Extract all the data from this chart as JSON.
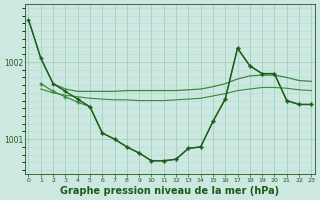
{
  "background_color": "#cce8e0",
  "plot_bg_color": "#cce8e0",
  "grid_color_major": "#99ccbb",
  "grid_color_minor": "#b8ddd4",
  "line_dark": "#1a5c1a",
  "line_light": "#3a8a3a",
  "xlabel": "Graphe pression niveau de la mer (hPa)",
  "xlabel_fontsize": 7,
  "ylabel_ticks": [
    1001,
    1002
  ],
  "xlim": [
    -0.3,
    23.3
  ],
  "ylim": [
    1000.55,
    1002.75
  ],
  "xticks": [
    0,
    1,
    2,
    3,
    4,
    5,
    6,
    7,
    8,
    9,
    10,
    11,
    12,
    13,
    14,
    15,
    16,
    17,
    18,
    19,
    20,
    21,
    22,
    23
  ],
  "curve1_x": [
    0,
    1,
    2,
    3,
    4,
    5,
    6,
    7,
    8,
    9,
    10,
    11,
    12,
    13,
    14,
    15,
    16,
    17,
    18,
    19,
    20,
    21,
    22,
    23
  ],
  "curve1_y": [
    1002.55,
    1002.05,
    1001.72,
    1001.65,
    1001.62,
    1001.62,
    1001.62,
    1001.62,
    1001.63,
    1001.63,
    1001.63,
    1001.63,
    1001.63,
    1001.64,
    1001.65,
    1001.68,
    1001.72,
    1001.78,
    1001.82,
    1001.83,
    1001.83,
    1001.8,
    1001.76,
    1001.75
  ],
  "curve2_x": [
    0,
    1,
    2,
    3,
    4,
    5,
    6,
    7,
    8,
    9,
    10,
    11,
    12,
    13,
    14,
    15,
    16,
    17,
    18,
    19,
    20,
    21,
    22,
    23
  ],
  "curve2_y": [
    1002.55,
    1002.05,
    1001.72,
    1001.62,
    1001.52,
    1001.42,
    1001.08,
    1001.0,
    1000.9,
    1000.82,
    1000.72,
    1000.72,
    1000.74,
    1000.88,
    1000.9,
    1001.23,
    1001.52,
    1002.18,
    1001.95,
    1001.85,
    1001.85,
    1001.5,
    1001.45,
    1001.45
  ],
  "curve3_x": [
    1,
    2,
    3,
    4,
    5,
    6,
    7,
    8,
    9,
    10,
    11,
    12,
    13,
    14,
    15,
    16,
    17,
    18,
    19,
    20,
    21,
    22,
    23
  ],
  "curve3_y": [
    1001.72,
    1001.62,
    1001.55,
    1001.48,
    1001.42,
    1001.08,
    1001.0,
    1000.9,
    1000.82,
    1000.72,
    1000.72,
    1000.74,
    1000.88,
    1000.9,
    1001.23,
    1001.52,
    1002.18,
    1001.95,
    1001.85,
    1001.85,
    1001.5,
    1001.45,
    1001.45
  ],
  "curve4_x": [
    1,
    2,
    3,
    4,
    5,
    6,
    7,
    8,
    9,
    10,
    11,
    12,
    13,
    14,
    15,
    16,
    17,
    18,
    19,
    20,
    21,
    22,
    23
  ],
  "curve4_y": [
    1001.65,
    1001.6,
    1001.57,
    1001.55,
    1001.53,
    1001.52,
    1001.51,
    1001.51,
    1001.5,
    1001.5,
    1001.5,
    1001.51,
    1001.52,
    1001.53,
    1001.56,
    1001.59,
    1001.63,
    1001.65,
    1001.67,
    1001.67,
    1001.66,
    1001.64,
    1001.63
  ]
}
